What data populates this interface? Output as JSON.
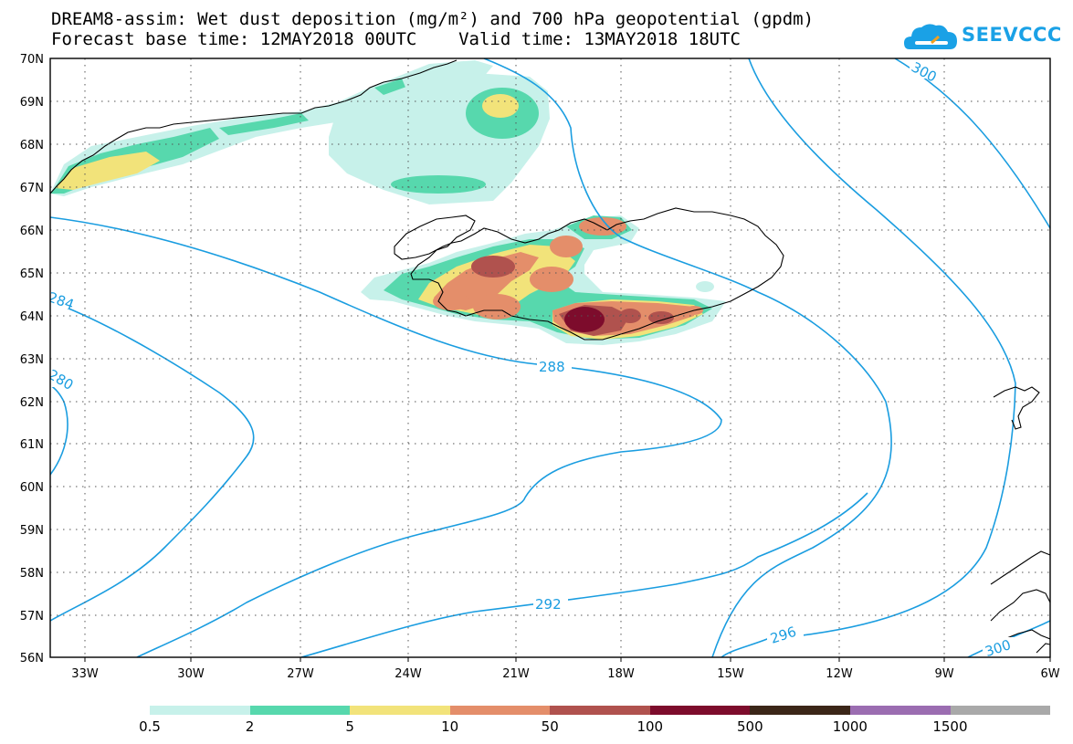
{
  "title_line1": "DREAM8-assim: Wet dust deposition (mg/m²) and 700 hPa geopotential (gpdm)",
  "title_line2": "Forecast base time: 12MAY2018 00UTC    Valid time: 13MAY2018 18UTC",
  "logo_text": "SEEVCCC",
  "lat_labels": [
    "70N",
    "69N",
    "68N",
    "67N",
    "66N",
    "65N",
    "64N",
    "63N",
    "62N",
    "61N",
    "60N",
    "59N",
    "58N",
    "57N",
    "56N"
  ],
  "lon_labels": [
    "33W",
    "30W",
    "27W",
    "24W",
    "21W",
    "18W",
    "15W",
    "12W",
    "9W",
    "6W"
  ],
  "contour_labels": [
    "300",
    "284",
    "288",
    "280",
    "292",
    "296",
    "300"
  ],
  "colorbar": {
    "labels": [
      "0.5",
      "2",
      "5",
      "10",
      "50",
      "100",
      "500",
      "1000",
      "1500"
    ],
    "colors": [
      "#c7f1ea",
      "#57d8ad",
      "#f2e37a",
      "#e48e6a",
      "#b0524e",
      "#7d0c2c",
      "#3b2618",
      "#9b6db1",
      "#a9a9a9"
    ]
  },
  "colors": {
    "contour": "#1a9de0",
    "logo": "#1aa1e6"
  }
}
